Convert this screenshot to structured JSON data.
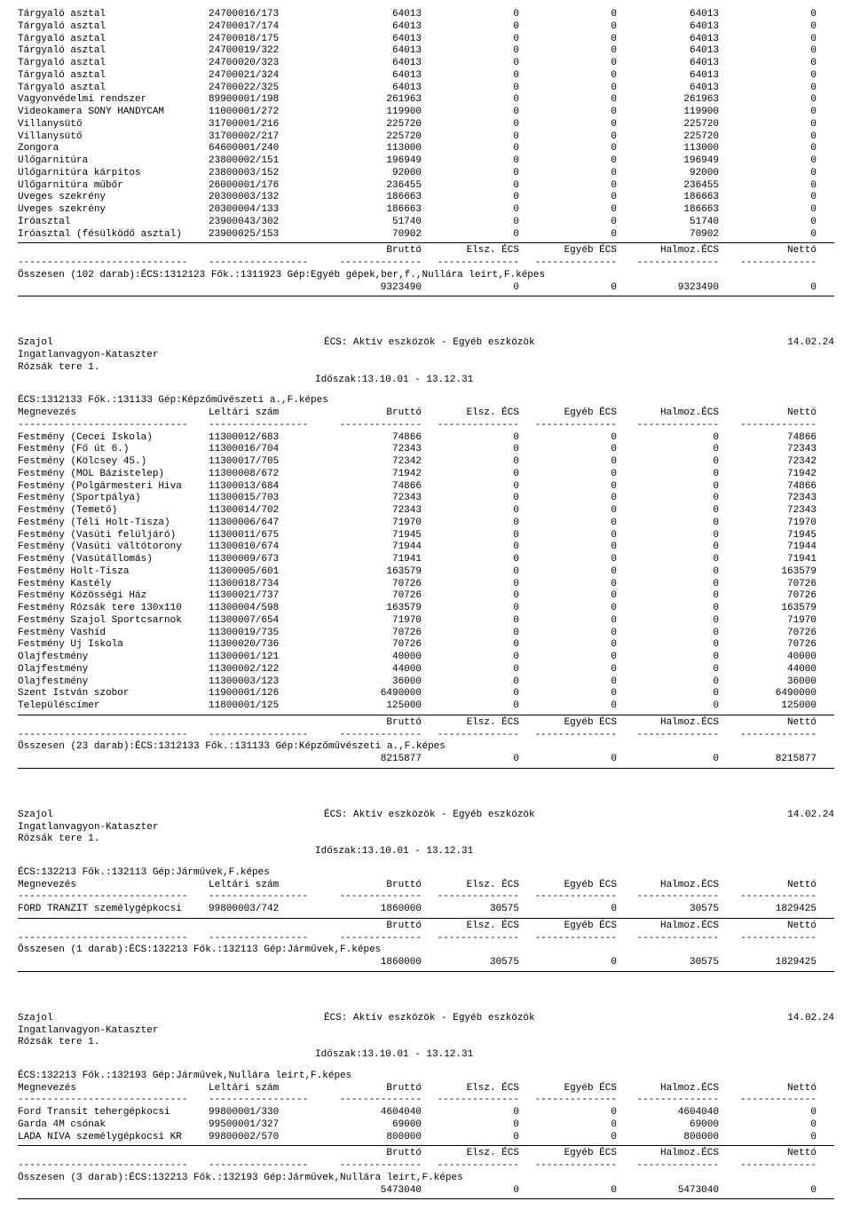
{
  "labels": {
    "megnevezes": "Megnevezés",
    "leltari": "Leltári szám",
    "brutto": "Bruttó",
    "elsz": "Elsz. ÉCS",
    "egyeb": "Egyéb ÉCS",
    "halmoz": "Halmoz.ÉCS",
    "netto": "Nettó",
    "szajol": "Szajol",
    "ingatlan": "Ingatlanvagyon-Kataszter",
    "rozsak": "Rózsák tere 1.",
    "pagetitle": "ÉCS: Aktív eszközök - Egyéb eszközök",
    "date": "14.02.24",
    "idoszak": "Időszak:13.10.01 - 13.12.31"
  },
  "sec1": {
    "rows": [
      [
        "Tárgyaló asztal",
        "24700016/173",
        "64013",
        "0",
        "0",
        "64013",
        "0"
      ],
      [
        "Tárgyaló asztal",
        "24700017/174",
        "64013",
        "0",
        "0",
        "64013",
        "0"
      ],
      [
        "Tárgyaló asztal",
        "24700018/175",
        "64013",
        "0",
        "0",
        "64013",
        "0"
      ],
      [
        "Tárgyaló asztal",
        "24700019/322",
        "64013",
        "0",
        "0",
        "64013",
        "0"
      ],
      [
        "Tárgyaló asztal",
        "24700020/323",
        "64013",
        "0",
        "0",
        "64013",
        "0"
      ],
      [
        "Tárgyaló asztal",
        "24700021/324",
        "64013",
        "0",
        "0",
        "64013",
        "0"
      ],
      [
        "Tárgyaló asztal",
        "24700022/325",
        "64013",
        "0",
        "0",
        "64013",
        "0"
      ],
      [
        "Vagyonvédelmi rendszer",
        "89900001/198",
        "261963",
        "0",
        "0",
        "261963",
        "0"
      ],
      [
        "Videokamera SONY HANDYCAM",
        "11000001/272",
        "119900",
        "0",
        "0",
        "119900",
        "0"
      ],
      [
        "Villanysütő",
        "31700001/216",
        "225720",
        "0",
        "0",
        "225720",
        "0"
      ],
      [
        "Villanysütő",
        "31700002/217",
        "225720",
        "0",
        "0",
        "225720",
        "0"
      ],
      [
        "Zongora",
        "64600001/240",
        "113000",
        "0",
        "0",
        "113000",
        "0"
      ],
      [
        "Ülőgarnitúra",
        "23800002/151",
        "196949",
        "0",
        "0",
        "196949",
        "0"
      ],
      [
        "Ülőgarnitúra kárpitos",
        "23800003/152",
        "92000",
        "0",
        "0",
        "92000",
        "0"
      ],
      [
        "Ülőgarnitúra műbőr",
        "26000001/176",
        "236455",
        "0",
        "0",
        "236455",
        "0"
      ],
      [
        "Üveges szekrény",
        "20300003/132",
        "186663",
        "0",
        "0",
        "186663",
        "0"
      ],
      [
        "Üveges szekrény",
        "20300004/133",
        "186663",
        "0",
        "0",
        "186663",
        "0"
      ],
      [
        "Íróasztal",
        "23900043/302",
        "51740",
        "0",
        "0",
        "51740",
        "0"
      ],
      [
        "Íróasztal (fésülködő asztal)",
        "23900025/153",
        "70902",
        "0",
        "0",
        "70902",
        "0"
      ]
    ],
    "sumline": "Összesen (102 darab):ÉCS:1312123 Fők.:1311923 Gép:Egyéb gépek,ber,f.,Nullára leírt,F.képes",
    "sum": [
      "9323490",
      "0",
      "0",
      "9323490",
      "0"
    ]
  },
  "sec2": {
    "title": "ÉCS:1312133 Fők.:131133 Gép:Képzőművészeti a.,F.képes",
    "rows": [
      [
        "Festmény (Cecei Iskola)",
        "11300012/683",
        "74866",
        "0",
        "0",
        "0",
        "74866"
      ],
      [
        "Festmény (Fő út 6.)",
        "11300016/704",
        "72343",
        "0",
        "0",
        "0",
        "72343"
      ],
      [
        "Festmény (Kölcsey 45.)",
        "11300017/705",
        "72342",
        "0",
        "0",
        "0",
        "72342"
      ],
      [
        "Festmény (MOL Bázistelep)",
        "11300008/672",
        "71942",
        "0",
        "0",
        "0",
        "71942"
      ],
      [
        "Festmény (Polgármesteri Hiva",
        "11300013/684",
        "74866",
        "0",
        "0",
        "0",
        "74866"
      ],
      [
        "Festmény (Sportpálya)",
        "11300015/703",
        "72343",
        "0",
        "0",
        "0",
        "72343"
      ],
      [
        "Festmény (Temető)",
        "11300014/702",
        "72343",
        "0",
        "0",
        "0",
        "72343"
      ],
      [
        "Festmény (Téli Holt-Tisza)",
        "11300006/647",
        "71970",
        "0",
        "0",
        "0",
        "71970"
      ],
      [
        "Festmény (Vasúti felüljáró)",
        "11300011/675",
        "71945",
        "0",
        "0",
        "0",
        "71945"
      ],
      [
        "Festmény (Vasúti váltótorony",
        "11300010/674",
        "71944",
        "0",
        "0",
        "0",
        "71944"
      ],
      [
        "Festmény (Vasútállomás)",
        "11300009/673",
        "71941",
        "0",
        "0",
        "0",
        "71941"
      ],
      [
        "Festmény Holt-Tisza",
        "11300005/601",
        "163579",
        "0",
        "0",
        "0",
        "163579"
      ],
      [
        "Festmény Kastély",
        "11300018/734",
        "70726",
        "0",
        "0",
        "0",
        "70726"
      ],
      [
        "Festmény Közösségi Ház",
        "11300021/737",
        "70726",
        "0",
        "0",
        "0",
        "70726"
      ],
      [
        "Festmény Rózsák tere 130x110",
        "11300004/598",
        "163579",
        "0",
        "0",
        "0",
        "163579"
      ],
      [
        "Festmény Szajol Sportcsarnok",
        "11300007/654",
        "71970",
        "0",
        "0",
        "0",
        "71970"
      ],
      [
        "Festmény Vashíd",
        "11300019/735",
        "70726",
        "0",
        "0",
        "0",
        "70726"
      ],
      [
        "Festmény Új Iskola",
        "11300020/736",
        "70726",
        "0",
        "0",
        "0",
        "70726"
      ],
      [
        "Olajfestmény",
        "11300001/121",
        "40000",
        "0",
        "0",
        "0",
        "40000"
      ],
      [
        "Olajfestmény",
        "11300002/122",
        "44000",
        "0",
        "0",
        "0",
        "44000"
      ],
      [
        "Olajfestmény",
        "11300003/123",
        "36000",
        "0",
        "0",
        "0",
        "36000"
      ],
      [
        "Szent István szobor",
        "11900001/126",
        "6490000",
        "0",
        "0",
        "0",
        "6490000"
      ],
      [
        "Településcímer",
        "11800001/125",
        "125000",
        "0",
        "0",
        "0",
        "125000"
      ]
    ],
    "sumline": "Összesen (23 darab):ÉCS:1312133 Fők.:131133 Gép:Képzőművészeti a.,F.képes",
    "sum": [
      "8215877",
      "0",
      "0",
      "0",
      "8215877"
    ]
  },
  "sec3": {
    "title": "ÉCS:132213 Fők.:132113 Gép:Járművek,F.képes",
    "rows": [
      [
        "FORD TRANZIT személygépkocsi",
        "99800003/742",
        "1860000",
        "30575",
        "0",
        "30575",
        "1829425"
      ]
    ],
    "sumline": "Összesen (1 darab):ÉCS:132213 Fők.:132113 Gép:Járművek,F.képes",
    "sum": [
      "1860000",
      "30575",
      "0",
      "30575",
      "1829425"
    ]
  },
  "sec4": {
    "title": "ÉCS:132213 Fők.:132193 Gép:Járművek,Nullára leírt,F.képes",
    "rows": [
      [
        "Ford Transit tehergépkocsi",
        "99800001/330",
        "4604040",
        "0",
        "0",
        "4604040",
        "0"
      ],
      [
        "Garda 4M csónak",
        "99500001/327",
        "69000",
        "0",
        "0",
        "69000",
        "0"
      ],
      [
        "LADA NIVA személygépkocsi KR",
        "99800002/570",
        "800000",
        "0",
        "0",
        "800000",
        "0"
      ]
    ],
    "sumline": "Összesen (3 darab):ÉCS:132213 Fők.:132193 Gép:Járművek,Nullára leírt,F.képes",
    "sum": [
      "5473040",
      "0",
      "0",
      "5473040",
      "0"
    ]
  }
}
